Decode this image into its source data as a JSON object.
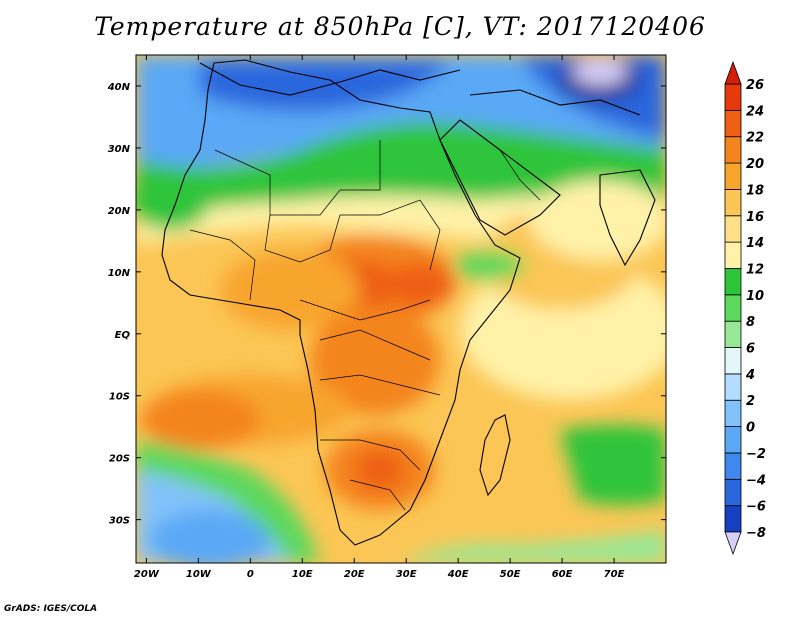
{
  "title": "Temperature at 850hPa [C], VT: 2017120406",
  "credit": "GrADS: IGES/COLA",
  "map": {
    "lon_range": [
      -22,
      80
    ],
    "lat_range": [
      -37,
      45
    ],
    "lon_ticks": [
      {
        "value": -20,
        "label": "20W"
      },
      {
        "value": -10,
        "label": "10W"
      },
      {
        "value": 0,
        "label": "0"
      },
      {
        "value": 10,
        "label": "10E"
      },
      {
        "value": 20,
        "label": "20E"
      },
      {
        "value": 30,
        "label": "30E"
      },
      {
        "value": 40,
        "label": "40E"
      },
      {
        "value": 50,
        "label": "50E"
      },
      {
        "value": 60,
        "label": "60E"
      },
      {
        "value": 70,
        "label": "70E"
      }
    ],
    "lat_ticks": [
      {
        "value": 40,
        "label": "40N"
      },
      {
        "value": 30,
        "label": "30N"
      },
      {
        "value": 20,
        "label": "20N"
      },
      {
        "value": 10,
        "label": "10N"
      },
      {
        "value": 0,
        "label": "EQ"
      },
      {
        "value": -10,
        "label": "10S"
      },
      {
        "value": -20,
        "label": "20S"
      },
      {
        "value": -30,
        "label": "30S"
      }
    ]
  },
  "colorbar": {
    "levels": [
      "-8",
      "-6",
      "-4",
      "-2",
      "0",
      "2",
      "4",
      "6",
      "8",
      "10",
      "12",
      "14",
      "16",
      "18",
      "20",
      "22",
      "24",
      "26"
    ],
    "colors": [
      "#0a1a80",
      "#1540c0",
      "#2a66dd",
      "#3f88ee",
      "#5aa8f6",
      "#82c2fa",
      "#b4dcfc",
      "#e3f7fb",
      "#96e896",
      "#5cd85c",
      "#2ec43a",
      "#fff2a8",
      "#fee08a",
      "#fbc655",
      "#f8a52e",
      "#f4841c",
      "#ee5f14",
      "#e63a0c",
      "#d41e06"
    ],
    "under_color": "#d8d0f8",
    "over_color": "#d41e06"
  },
  "field_colors": {
    "very_cold": "#0a1a80",
    "cold": "#2a66dd",
    "cool": "#5aa8f6",
    "cool_light": "#b4dcfc",
    "mild": "#e3f7fb",
    "green_light": "#96e896",
    "green": "#2ec43a",
    "warm_light": "#fff2a8",
    "warm": "#fbc655",
    "hot": "#f8a52e",
    "very_hot": "#f4841c",
    "extreme": "#ee5f14"
  }
}
